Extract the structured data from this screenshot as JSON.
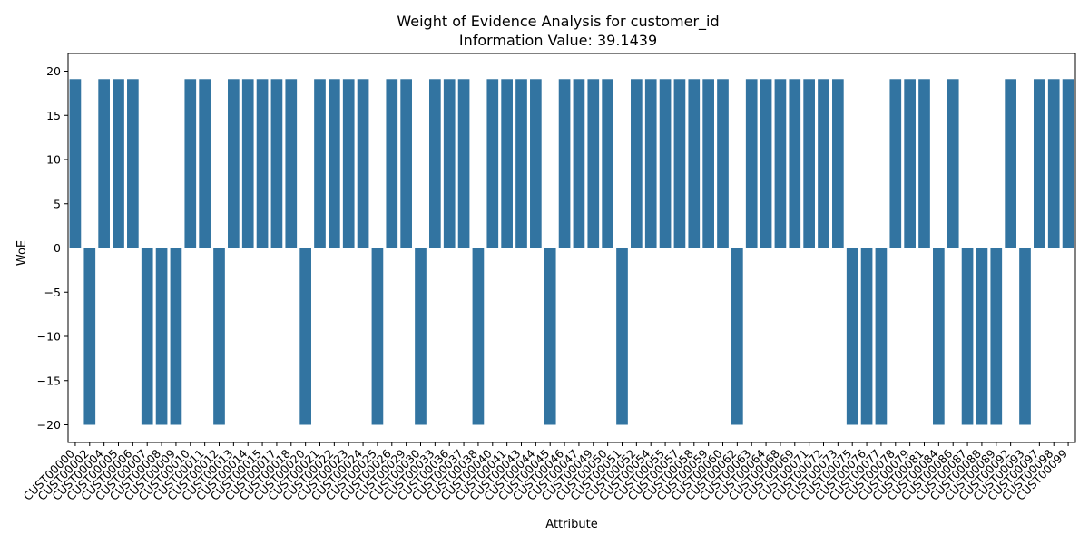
{
  "chart_data": {
    "type": "bar",
    "title": "Weight of Evidence Analysis for customer_id",
    "subtitle": "Information Value: 39.1439",
    "xlabel": "Attribute",
    "ylabel": "WoE",
    "ylim": [
      -22,
      22
    ],
    "yticks": [
      -20,
      -15,
      -10,
      -5,
      0,
      5,
      10,
      15,
      20
    ],
    "grid": false,
    "bar_color": "#3274a1",
    "zero_line_color": "#e8737a",
    "categories": [
      "CUST00000",
      "CUST00002",
      "CUST00004",
      "CUST00005",
      "CUST00006",
      "CUST00007",
      "CUST00008",
      "CUST00009",
      "CUST00010",
      "CUST00011",
      "CUST00012",
      "CUST00013",
      "CUST00014",
      "CUST00015",
      "CUST00017",
      "CUST00018",
      "CUST00020",
      "CUST00021",
      "CUST00022",
      "CUST00023",
      "CUST00024",
      "CUST00025",
      "CUST00026",
      "CUST00029",
      "CUST00030",
      "CUST00033",
      "CUST00036",
      "CUST00037",
      "CUST00038",
      "CUST00040",
      "CUST00041",
      "CUST00043",
      "CUST00044",
      "CUST00045",
      "CUST00046",
      "CUST00047",
      "CUST00049",
      "CUST00050",
      "CUST00051",
      "CUST00052",
      "CUST00054",
      "CUST00055",
      "CUST00057",
      "CUST00058",
      "CUST00059",
      "CUST00060",
      "CUST00062",
      "CUST00063",
      "CUST00064",
      "CUST00068",
      "CUST00069",
      "CUST00071",
      "CUST00072",
      "CUST00073",
      "CUST00075",
      "CUST00076",
      "CUST00077",
      "CUST00078",
      "CUST00079",
      "CUST00081",
      "CUST00084",
      "CUST00086",
      "CUST00087",
      "CUST00088",
      "CUST00089",
      "CUST00092",
      "CUST00093",
      "CUST00097",
      "CUST00098",
      "CUST00099"
    ],
    "values": [
      19.1,
      -20,
      19.1,
      19.1,
      19.1,
      -20,
      -20,
      -20,
      19.1,
      19.1,
      -20,
      19.1,
      19.1,
      19.1,
      19.1,
      19.1,
      -20,
      19.1,
      19.1,
      19.1,
      19.1,
      -20,
      19.1,
      19.1,
      -20,
      19.1,
      19.1,
      19.1,
      -20,
      19.1,
      19.1,
      19.1,
      19.1,
      -20,
      19.1,
      19.1,
      19.1,
      19.1,
      -20,
      19.1,
      19.1,
      19.1,
      19.1,
      19.1,
      19.1,
      19.1,
      -20,
      19.1,
      19.1,
      19.1,
      19.1,
      19.1,
      19.1,
      19.1,
      -20,
      -20,
      -20,
      19.1,
      19.1,
      19.1,
      -20,
      19.1,
      -20,
      -20,
      -20,
      19.1,
      -20,
      19.1,
      19.1,
      19.1
    ]
  }
}
